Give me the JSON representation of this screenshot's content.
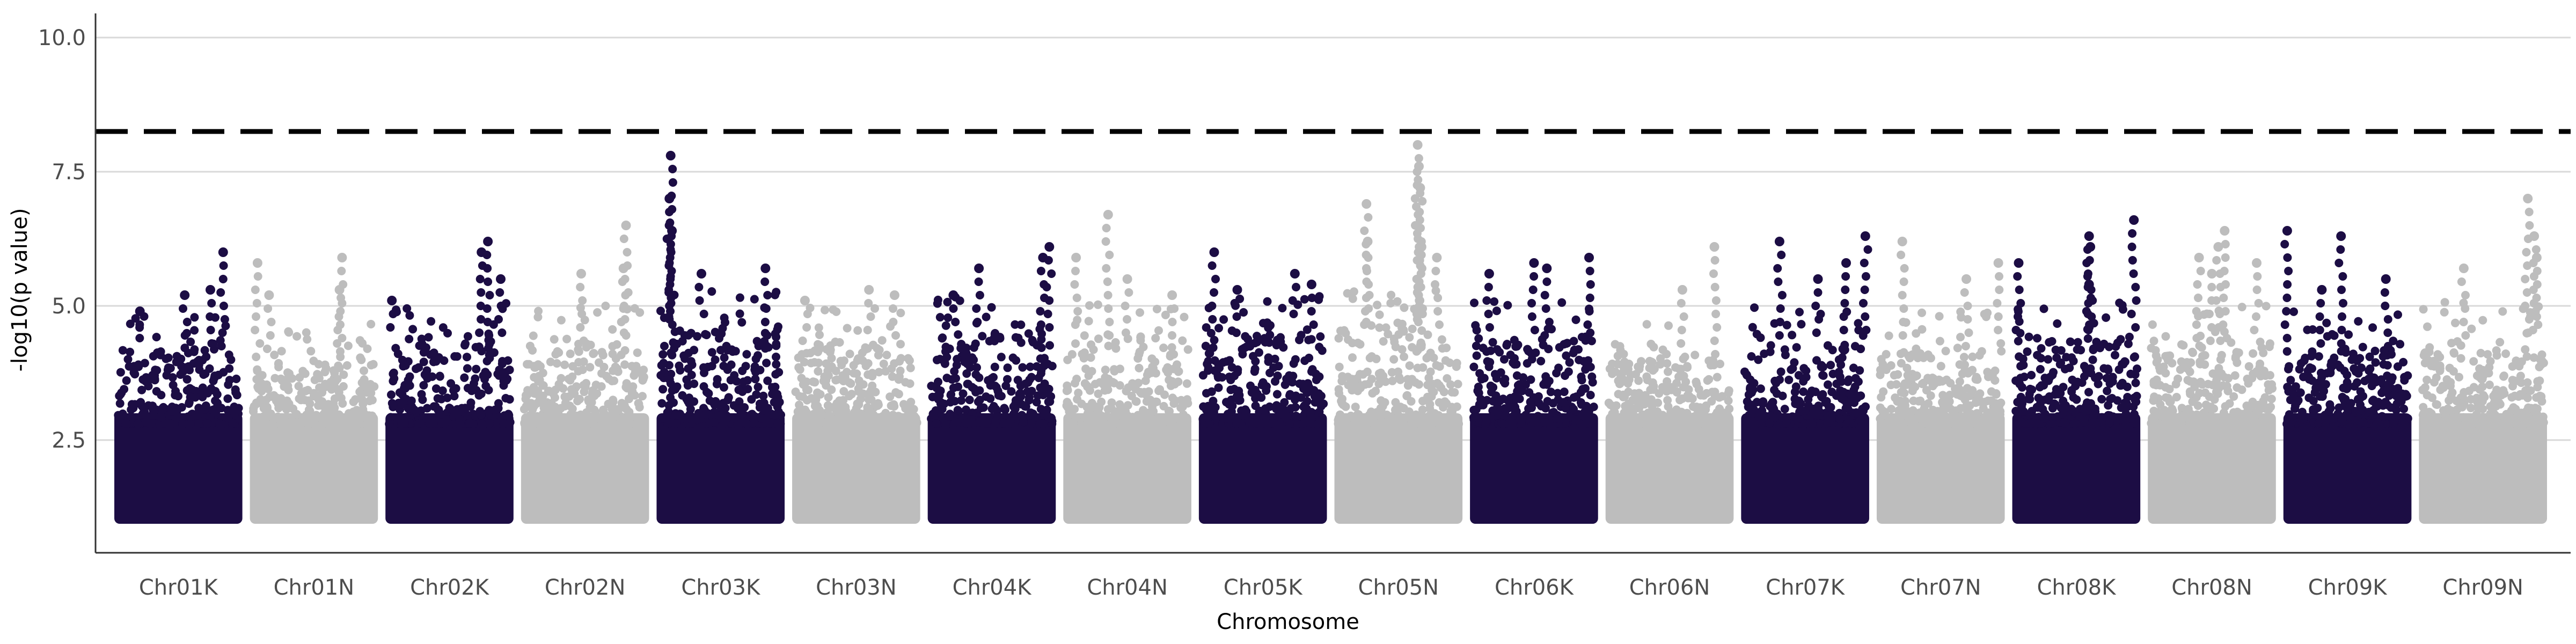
{
  "chart_data": {
    "type": "scatter",
    "subtype": "manhattan",
    "title": "",
    "xlabel": "Chromosome",
    "ylabel": "-log10(p value)",
    "ylim": [
      0.4,
      10.45
    ],
    "yticks": [
      2.5,
      5.0,
      7.5,
      10.0
    ],
    "ytick_labels": [
      "2.5",
      "5.0",
      "7.5",
      "10.0"
    ],
    "grid": "horizontal major",
    "legend": "none",
    "threshold": 8.25,
    "threshold_style": "dashed",
    "min_plotted_value": 1.0,
    "colors": {
      "odd": "#1c0d44",
      "even": "#bdbdbd",
      "threshold": "#000000",
      "grid": "#d9d9d9"
    },
    "chromosomes": [
      {
        "name": "Chr01K",
        "color": "#1c0d44",
        "band_top": 4.2,
        "peaks": [
          {
            "pos": 0.2,
            "y": 4.9
          },
          {
            "pos": 0.55,
            "y": 5.2
          },
          {
            "pos": 0.75,
            "y": 5.3
          },
          {
            "pos": 0.85,
            "y": 6.0
          }
        ]
      },
      {
        "name": "Chr01N",
        "color": "#bdbdbd",
        "band_top": 4.0,
        "peaks": [
          {
            "pos": 0.06,
            "y": 5.8
          },
          {
            "pos": 0.15,
            "y": 5.2
          },
          {
            "pos": 0.7,
            "y": 5.3
          },
          {
            "pos": 0.72,
            "y": 5.9
          }
        ]
      },
      {
        "name": "Chr02K",
        "color": "#1c0d44",
        "band_top": 4.4,
        "peaks": [
          {
            "pos": 0.05,
            "y": 5.1
          },
          {
            "pos": 0.75,
            "y": 6.0
          },
          {
            "pos": 0.8,
            "y": 6.2
          },
          {
            "pos": 0.9,
            "y": 5.5
          }
        ]
      },
      {
        "name": "Chr02N",
        "color": "#bdbdbd",
        "band_top": 4.3,
        "peaks": [
          {
            "pos": 0.47,
            "y": 5.6
          },
          {
            "pos": 0.8,
            "y": 5.7
          },
          {
            "pos": 0.82,
            "y": 6.5
          }
        ]
      },
      {
        "name": "Chr03K",
        "color": "#1c0d44",
        "band_top": 4.6,
        "peaks": [
          {
            "pos": 0.1,
            "y": 7.0
          },
          {
            "pos": 0.11,
            "y": 7.8
          },
          {
            "pos": 0.12,
            "y": 6.4
          },
          {
            "pos": 0.35,
            "y": 5.6
          },
          {
            "pos": 0.85,
            "y": 5.7
          }
        ]
      },
      {
        "name": "Chr03N",
        "color": "#bdbdbd",
        "band_top": 4.3,
        "peaks": [
          {
            "pos": 0.1,
            "y": 5.1
          },
          {
            "pos": 0.6,
            "y": 5.3
          },
          {
            "pos": 0.8,
            "y": 5.2
          }
        ]
      },
      {
        "name": "Chr04K",
        "color": "#1c0d44",
        "band_top": 4.5,
        "peaks": [
          {
            "pos": 0.2,
            "y": 5.2
          },
          {
            "pos": 0.4,
            "y": 5.7
          },
          {
            "pos": 0.9,
            "y": 5.9
          },
          {
            "pos": 0.95,
            "y": 6.1
          }
        ]
      },
      {
        "name": "Chr04N",
        "color": "#bdbdbd",
        "band_top": 4.4,
        "peaks": [
          {
            "pos": 0.1,
            "y": 5.9
          },
          {
            "pos": 0.35,
            "y": 6.7
          },
          {
            "pos": 0.5,
            "y": 5.5
          },
          {
            "pos": 0.85,
            "y": 5.2
          }
        ]
      },
      {
        "name": "Chr05K",
        "color": "#1c0d44",
        "band_top": 4.6,
        "peaks": [
          {
            "pos": 0.12,
            "y": 6.0
          },
          {
            "pos": 0.3,
            "y": 5.3
          },
          {
            "pos": 0.75,
            "y": 5.6
          },
          {
            "pos": 0.88,
            "y": 5.4
          }
        ]
      },
      {
        "name": "Chr05N",
        "color": "#bdbdbd",
        "band_top": 4.6,
        "peaks": [
          {
            "pos": 0.25,
            "y": 6.9
          },
          {
            "pos": 0.26,
            "y": 6.2
          },
          {
            "pos": 0.65,
            "y": 8.0
          },
          {
            "pos": 0.66,
            "y": 7.6
          },
          {
            "pos": 0.67,
            "y": 7.2
          },
          {
            "pos": 0.68,
            "y": 6.1
          },
          {
            "pos": 0.8,
            "y": 5.9
          }
        ]
      },
      {
        "name": "Chr06K",
        "color": "#1c0d44",
        "band_top": 4.4,
        "peaks": [
          {
            "pos": 0.15,
            "y": 5.6
          },
          {
            "pos": 0.5,
            "y": 5.8
          },
          {
            "pos": 0.6,
            "y": 5.7
          },
          {
            "pos": 0.93,
            "y": 5.9
          }
        ]
      },
      {
        "name": "Chr06N",
        "color": "#bdbdbd",
        "band_top": 4.0,
        "peaks": [
          {
            "pos": 0.6,
            "y": 5.3
          },
          {
            "pos": 0.85,
            "y": 6.1
          }
        ]
      },
      {
        "name": "Chr07K",
        "color": "#1c0d44",
        "band_top": 4.3,
        "peaks": [
          {
            "pos": 0.3,
            "y": 6.2
          },
          {
            "pos": 0.6,
            "y": 5.5
          },
          {
            "pos": 0.82,
            "y": 5.8
          },
          {
            "pos": 0.97,
            "y": 6.3
          }
        ]
      },
      {
        "name": "Chr07N",
        "color": "#bdbdbd",
        "band_top": 4.2,
        "peaks": [
          {
            "pos": 0.2,
            "y": 6.2
          },
          {
            "pos": 0.7,
            "y": 5.5
          },
          {
            "pos": 0.95,
            "y": 5.8
          }
        ]
      },
      {
        "name": "Chr08K",
        "color": "#1c0d44",
        "band_top": 4.4,
        "peaks": [
          {
            "pos": 0.05,
            "y": 5.8
          },
          {
            "pos": 0.6,
            "y": 6.3
          },
          {
            "pos": 0.61,
            "y": 6.1
          },
          {
            "pos": 0.6,
            "y": 5.4
          },
          {
            "pos": 0.95,
            "y": 6.6
          }
        ]
      },
      {
        "name": "Chr08N",
        "color": "#bdbdbd",
        "band_top": 4.3,
        "peaks": [
          {
            "pos": 0.4,
            "y": 5.9
          },
          {
            "pos": 0.5,
            "y": 5.6
          },
          {
            "pos": 0.55,
            "y": 6.1
          },
          {
            "pos": 0.6,
            "y": 6.4
          },
          {
            "pos": 0.85,
            "y": 5.8
          }
        ]
      },
      {
        "name": "Chr09K",
        "color": "#1c0d44",
        "band_top": 4.2,
        "peaks": [
          {
            "pos": 0.03,
            "y": 6.4
          },
          {
            "pos": 0.3,
            "y": 5.3
          },
          {
            "pos": 0.45,
            "y": 6.3
          },
          {
            "pos": 0.8,
            "y": 5.5
          }
        ]
      },
      {
        "name": "Chr09N",
        "color": "#bdbdbd",
        "band_top": 4.4,
        "peaks": [
          {
            "pos": 0.35,
            "y": 5.7
          },
          {
            "pos": 0.85,
            "y": 7.0
          },
          {
            "pos": 0.9,
            "y": 6.3
          },
          {
            "pos": 0.92,
            "y": 5.9
          }
        ]
      }
    ]
  }
}
